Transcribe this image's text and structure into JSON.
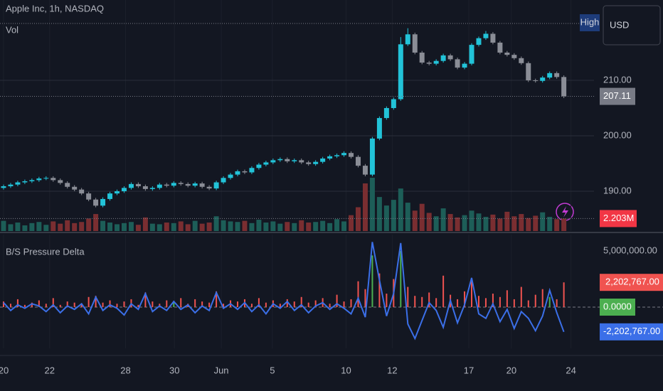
{
  "chart_data": [
    {
      "type": "candlestick",
      "title": "Apple Inc, 1h, NASDAQ",
      "subtitle": "Vol",
      "currency": "USD",
      "up_color": "#22c3d8",
      "down_color": "#8a8d96",
      "grid": true,
      "ylim": [
        182.82,
        224.49
      ],
      "yticks": [
        {
          "value": 190,
          "label": "190.00"
        },
        {
          "value": 200,
          "label": "200.00"
        },
        {
          "value": 210,
          "label": "210.00"
        }
      ],
      "xlim": [
        -0.5,
        83.25
      ],
      "xticks": [
        {
          "value": 0,
          "label": "20"
        },
        {
          "value": 6.5,
          "label": "22"
        },
        {
          "value": 17.2,
          "label": "28"
        },
        {
          "value": 24.1,
          "label": "30"
        },
        {
          "value": 30.7,
          "label": "Jun"
        },
        {
          "value": 37.9,
          "label": "5"
        },
        {
          "value": 48.3,
          "label": "10"
        },
        {
          "value": 54.8,
          "label": "12"
        },
        {
          "value": 65.6,
          "label": "17"
        },
        {
          "value": 71.6,
          "label": "20"
        },
        {
          "value": 80.0,
          "label": "24"
        }
      ],
      "high_marker": {
        "value": 220.26,
        "label": "High"
      },
      "open": [
        190.6,
        190.9,
        191.2,
        191.6,
        191.8,
        192.0,
        192.3,
        192.4,
        192.0,
        191.5,
        190.8,
        190.3,
        189.6,
        188.5,
        187.4,
        188.6,
        189.6,
        190.0,
        190.6,
        191.3,
        190.9,
        190.4,
        190.6,
        191.2,
        191.0,
        191.5,
        191.3,
        191.0,
        191.4,
        190.8,
        190.5,
        191.6,
        192.4,
        193.0,
        193.6,
        193.4,
        194.2,
        194.8,
        195.2,
        195.6,
        195.8,
        195.4,
        195.6,
        195.2,
        194.9,
        195.3,
        195.9,
        196.3,
        196.5,
        196.9,
        196.2,
        194.6,
        193.0,
        199.5,
        203.2,
        205.0,
        206.6,
        216.5,
        218.3,
        215.0,
        213.2,
        213.0,
        213.5,
        214.5,
        213.8,
        212.3,
        213.0,
        216.4,
        217.6,
        218.4,
        216.8,
        215.0,
        214.6,
        214.0,
        213.1,
        210.0,
        209.9,
        210.5,
        211.3,
        210.6
      ],
      "high": [
        191.2,
        191.5,
        191.9,
        192.1,
        192.3,
        192.6,
        192.7,
        192.7,
        192.3,
        191.8,
        191.1,
        190.6,
        189.9,
        188.8,
        188.9,
        189.9,
        190.3,
        190.9,
        191.6,
        191.6,
        191.2,
        190.9,
        191.5,
        191.5,
        191.8,
        191.8,
        191.6,
        191.7,
        191.7,
        191.1,
        191.9,
        192.7,
        193.3,
        193.9,
        193.9,
        194.5,
        195.1,
        195.5,
        195.9,
        196.1,
        196.1,
        195.9,
        195.9,
        195.5,
        195.6,
        196.2,
        196.6,
        196.8,
        197.2,
        197.2,
        196.5,
        194.9,
        199.8,
        203.5,
        205.3,
        206.9,
        217.8,
        219.4,
        218.6,
        215.3,
        213.5,
        213.8,
        214.8,
        214.8,
        214.1,
        213.3,
        216.7,
        217.9,
        218.9,
        218.7,
        217.1,
        215.3,
        214.9,
        214.3,
        213.4,
        210.3,
        210.8,
        211.6,
        211.6,
        210.9
      ],
      "low": [
        190.3,
        190.6,
        190.9,
        191.3,
        191.5,
        191.7,
        192.0,
        191.7,
        191.2,
        190.5,
        190.0,
        189.3,
        188.2,
        187.1,
        187.1,
        188.3,
        189.3,
        189.7,
        190.3,
        190.6,
        190.1,
        190.1,
        190.3,
        190.7,
        190.7,
        191.0,
        190.7,
        190.7,
        190.5,
        190.2,
        190.2,
        191.3,
        192.1,
        192.7,
        193.1,
        193.1,
        193.9,
        194.5,
        194.9,
        195.3,
        195.1,
        195.1,
        194.9,
        194.6,
        194.6,
        195.0,
        195.6,
        196.0,
        196.2,
        195.9,
        194.3,
        192.7,
        192.7,
        199.2,
        202.9,
        204.7,
        206.3,
        216.2,
        214.7,
        212.9,
        212.7,
        212.7,
        213.2,
        213.5,
        212.0,
        212.0,
        212.7,
        216.1,
        217.3,
        216.5,
        214.7,
        214.3,
        213.7,
        212.8,
        209.7,
        209.6,
        209.6,
        210.2,
        210.3,
        206.81
      ],
      "close": [
        190.9,
        191.2,
        191.6,
        191.8,
        192.0,
        192.3,
        192.4,
        192.0,
        191.5,
        190.8,
        190.3,
        189.6,
        188.5,
        187.4,
        188.6,
        189.6,
        190.0,
        190.6,
        191.3,
        190.9,
        190.4,
        190.6,
        191.2,
        191.0,
        191.5,
        191.3,
        191.0,
        191.4,
        190.8,
        190.5,
        191.6,
        192.4,
        193.0,
        193.6,
        193.4,
        194.2,
        194.8,
        195.2,
        195.6,
        195.8,
        195.4,
        195.6,
        195.2,
        194.9,
        195.3,
        195.9,
        196.3,
        196.5,
        196.9,
        196.2,
        194.6,
        193.0,
        199.5,
        203.2,
        205.0,
        206.6,
        216.5,
        218.3,
        215.0,
        213.2,
        213.0,
        213.5,
        214.5,
        213.8,
        212.3,
        213.0,
        216.4,
        217.6,
        218.4,
        216.8,
        215.0,
        214.6,
        214.0,
        213.1,
        210.0,
        209.9,
        210.5,
        211.3,
        210.6,
        207.11
      ],
      "volume": {
        "up_color": "#1d5e58",
        "down_color": "#7a2e31",
        "label_color": "#f23645",
        "last_label": "2.203M",
        "values": [
          1.8,
          1.2,
          1.5,
          1.0,
          1.4,
          1.6,
          1.1,
          1.7,
          1.3,
          1.9,
          1.4,
          1.6,
          2.2,
          3.0,
          1.8,
          1.5,
          1.2,
          1.4,
          1.6,
          1.1,
          2.4,
          1.3,
          1.2,
          1.5,
          1.4,
          1.7,
          1.2,
          1.8,
          1.3,
          1.5,
          2.6,
          1.9,
          1.7,
          1.6,
          1.8,
          1.4,
          2.0,
          1.5,
          1.7,
          1.3,
          1.6,
          1.4,
          1.9,
          1.5,
          1.6,
          1.8,
          1.4,
          2.1,
          1.7,
          2.8,
          4.2,
          8.4,
          9.4,
          6.0,
          4.5,
          5.5,
          7.5,
          5.0,
          3.6,
          4.8,
          3.2,
          2.6,
          4.0,
          3.0,
          2.4,
          2.8,
          3.6,
          3.1,
          2.5,
          2.9,
          2.2,
          3.4,
          2.6,
          3.0,
          2.3,
          2.7,
          3.3,
          2.5,
          2.1,
          2.203
        ]
      }
    },
    {
      "type": "delta",
      "title": "B/S Pressure Delta",
      "ylim": [
        -3671000,
        6456000
      ],
      "yticks": [
        {
          "value": 5000000,
          "label": "5,000,000.00"
        },
        {
          "value": 0,
          "label": "0.0000"
        }
      ],
      "zero_color": "#4caf50",
      "histogram": {
        "color": "#f05350",
        "alt_color": "#4caf50",
        "last_label": "2,202,767.00",
        "values": [
          500000,
          300000,
          700000,
          200000,
          400000,
          600000,
          300000,
          800000,
          200000,
          500000,
          400000,
          300000,
          900000,
          1000000,
          400000,
          600000,
          300000,
          500000,
          700000,
          200000,
          1300000,
          500000,
          300000,
          600000,
          400000,
          800000,
          300000,
          700000,
          500000,
          400000,
          1400000,
          300000,
          600000,
          500000,
          700000,
          300000,
          800000,
          400000,
          600000,
          300000,
          700000,
          500000,
          900000,
          400000,
          600000,
          800000,
          300000,
          1100000,
          500000,
          700000,
          2300000,
          1600000,
          4600000,
          3000000,
          1200000,
          2500000,
          5000000,
          1800000,
          1000000,
          900000,
          1300000,
          800000,
          2800000,
          1100000,
          700000,
          1400000,
          2600000,
          1000000,
          800000,
          1200000,
          900000,
          1500000,
          700000,
          1800000,
          600000,
          1100000,
          1600000,
          900000,
          700000,
          2202767
        ]
      },
      "line": {
        "color": "#3b6fe8",
        "last_label": "-2,202,767.00",
        "values": [
          400000,
          -300000,
          200000,
          -100000,
          300000,
          100000,
          -400000,
          200000,
          -500000,
          100000,
          -200000,
          300000,
          -600000,
          900000,
          -300000,
          200000,
          -100000,
          -700000,
          300000,
          -200000,
          1200000,
          -400000,
          100000,
          -300000,
          500000,
          -200000,
          200000,
          -500000,
          100000,
          -300000,
          1300000,
          -100000,
          300000,
          -200000,
          400000,
          -400000,
          200000,
          -600000,
          300000,
          -100000,
          500000,
          -300000,
          200000,
          -500000,
          100000,
          400000,
          -200000,
          300000,
          -100000,
          -600000,
          800000,
          -900000,
          5800000,
          2400000,
          -800000,
          1200000,
          5700000,
          -1500000,
          -2800000,
          -1200000,
          400000,
          -300000,
          -1800000,
          600000,
          -1400000,
          200000,
          2600000,
          -600000,
          -1000000,
          300000,
          -1300000,
          -200000,
          -1900000,
          -400000,
          -1000000,
          -2100000,
          -800000,
          1500000,
          -500000,
          -2202767
        ]
      }
    }
  ]
}
